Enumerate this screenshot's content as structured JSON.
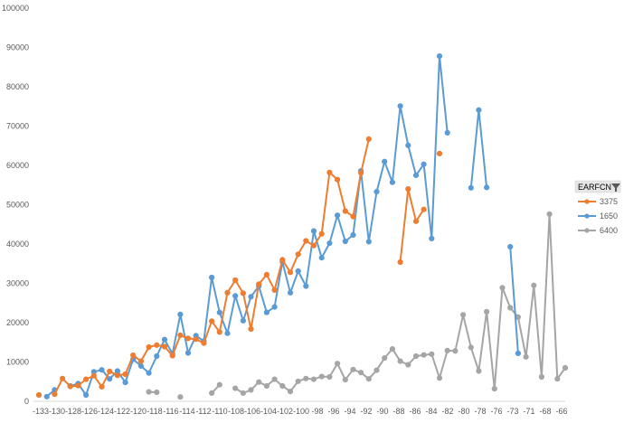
{
  "chart_data": {
    "type": "line",
    "title": "",
    "xlabel": "",
    "ylabel": "",
    "ylim": [
      0,
      100000
    ],
    "y_ticks": [
      "0",
      "10000",
      "20000",
      "30000",
      "40000",
      "50000",
      "60000",
      "70000",
      "80000",
      "90000",
      "100000"
    ],
    "x_ticks": [
      "-133",
      "-130",
      "-128",
      "-126",
      "-124",
      "-122",
      "-120",
      "-118",
      "-116",
      "-114",
      "-112",
      "-110",
      "-108",
      "-106",
      "-104",
      "-102",
      "-100",
      "-98",
      "-96",
      "-94",
      "-92",
      "-90",
      "-88",
      "-86",
      "-84",
      "-82",
      "-80",
      "-78",
      "-76",
      "-73",
      "-71",
      "-68",
      "-66"
    ],
    "grid": false,
    "legend": {
      "title": "EARFCN",
      "position": "right",
      "filter_icon": "filter-icon"
    },
    "series": [
      {
        "name": "3375",
        "color": "#ED7D31",
        "values": [
          1600,
          null,
          1800,
          5800,
          3800,
          4000,
          5600,
          6500,
          3700,
          7600,
          6600,
          6900,
          11700,
          10200,
          13800,
          14300,
          13900,
          11600,
          16800,
          16000,
          15800,
          14800,
          20400,
          17600,
          27600,
          30800,
          27500,
          18400,
          29800,
          32200,
          28300,
          36000,
          32800,
          37400,
          40800,
          39600,
          42600,
          58200,
          56400,
          48400,
          47000,
          58100,
          66700,
          null,
          null,
          null,
          35400,
          54000,
          45800,
          48800,
          null,
          63000
        ]
      },
      {
        "name": "1650",
        "color": "#5B9BD5",
        "values": [
          null,
          1200,
          2900,
          null,
          3900,
          4500,
          1600,
          7500,
          8000,
          5700,
          7700,
          4800,
          10700,
          9000,
          7200,
          11500,
          15700,
          12100,
          22100,
          12300,
          16700,
          15300,
          31500,
          22600,
          17300,
          26800,
          20500,
          26600,
          29300,
          22600,
          24000,
          35500,
          27600,
          33100,
          29300,
          43300,
          36500,
          40200,
          47300,
          40700,
          42300,
          58600,
          40600,
          53300,
          61000,
          55700,
          75100,
          65100,
          57500,
          60300,
          41400,
          87800,
          68300,
          null,
          null,
          54300,
          74100,
          54400,
          null,
          null,
          39300,
          12200
        ]
      },
      {
        "name": "6400",
        "color": "#A5A5A5",
        "values": [
          null,
          null,
          null,
          null,
          null,
          null,
          null,
          null,
          null,
          null,
          null,
          null,
          null,
          null,
          2400,
          2300,
          null,
          null,
          1100,
          null,
          null,
          null,
          2100,
          4200,
          null,
          3300,
          2100,
          2900,
          4900,
          3900,
          5600,
          3900,
          2500,
          5100,
          5800,
          5600,
          6300,
          6200,
          9600,
          5500,
          8100,
          7300,
          5700,
          7900,
          11000,
          13300,
          10200,
          9300,
          11500,
          11800,
          12000,
          5900,
          12900,
          12800,
          22000,
          13700,
          7700,
          22800,
          3200,
          28900,
          23800,
          21400,
          11300,
          29500,
          6200,
          47600,
          5700,
          8500
        ]
      }
    ]
  }
}
